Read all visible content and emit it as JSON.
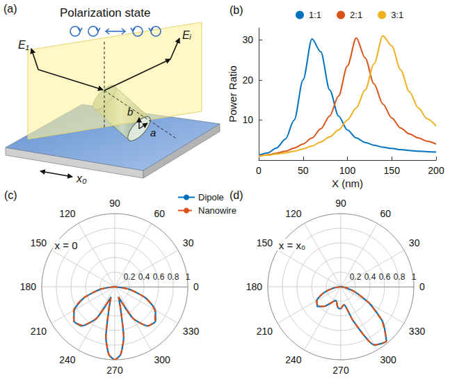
{
  "diagram": {
    "panel": "(a)",
    "title": "Polarization state",
    "labels": {
      "incident_field": "E₁",
      "reflected_field": "Eᵢ",
      "semi_axis_a": "a",
      "semi_axis_b": "b",
      "offset": "x₀"
    }
  },
  "chart_data": [
    {
      "panel": "(b)",
      "type": "line",
      "xlabel": "X (nm)",
      "ylabel": "Power Ratio",
      "x": [
        0,
        10,
        20,
        30,
        40,
        50,
        60,
        70,
        80,
        90,
        100,
        110,
        120,
        130,
        140,
        150,
        160,
        170,
        180,
        190,
        200
      ],
      "series": [
        {
          "name": "1:1",
          "color": "#0072BD",
          "values": [
            1.2,
            1.8,
            3.0,
            5.2,
            10,
            20,
            30.2,
            27,
            17.5,
            11,
            7.5,
            5.5,
            4.4,
            3.7,
            3.2,
            2.9,
            2.6,
            2.4,
            2.2,
            2.1,
            2.0
          ]
        },
        {
          "name": "2:1",
          "color": "#D95319",
          "values": [
            1.0,
            1.3,
            1.7,
            2.2,
            3.0,
            4.0,
            5.5,
            7.8,
            11,
            16,
            23.5,
            30.5,
            25.5,
            19,
            14,
            10.5,
            8,
            6.5,
            5.5,
            4.7,
            4.0
          ]
        },
        {
          "name": "3:1",
          "color": "#EDB120",
          "values": [
            1.0,
            1.2,
            1.5,
            1.8,
            2.2,
            2.8,
            3.5,
            4.5,
            5.8,
            7.5,
            10,
            13,
            17.5,
            24,
            31,
            28.5,
            22.5,
            17,
            13,
            10.3,
            8.5
          ]
        }
      ],
      "xlim": [
        0,
        200
      ],
      "xticks": [
        0,
        50,
        100,
        150,
        200
      ],
      "ylim": [
        0,
        33
      ],
      "yticks": [
        10,
        20,
        30
      ],
      "grid": false,
      "legend": "top"
    },
    {
      "panel": "(c)",
      "type": "polar",
      "annotation": "x = 0",
      "theta": [
        180,
        190,
        200,
        210,
        220,
        230,
        240,
        250,
        255,
        260,
        265,
        270,
        275,
        280,
        285,
        290,
        300,
        310,
        320,
        330,
        340,
        350,
        360
      ],
      "series": [
        {
          "name": "Dipole",
          "color": "#0072BD",
          "line_style": "solid",
          "values": [
            0,
            0.2,
            0.45,
            0.64,
            0.73,
            0.7,
            0.5,
            0.15,
            0.3,
            0.7,
            0.93,
            1,
            0.93,
            0.7,
            0.3,
            0.15,
            0.5,
            0.7,
            0.73,
            0.64,
            0.45,
            0.2,
            0
          ]
        },
        {
          "name": "Nanowire",
          "color": "#D95319",
          "line_style": "dashed",
          "values": [
            0,
            0.2,
            0.46,
            0.65,
            0.73,
            0.69,
            0.5,
            0.16,
            0.31,
            0.7,
            0.93,
            1,
            0.93,
            0.71,
            0.31,
            0.15,
            0.5,
            0.7,
            0.72,
            0.63,
            0.45,
            0.2,
            0
          ]
        }
      ],
      "rlim": [
        0,
        1
      ],
      "rticks": [
        0.2,
        0.4,
        0.6,
        0.8,
        1
      ],
      "thetaticks": [
        0,
        30,
        60,
        90,
        120,
        150,
        180,
        210,
        240,
        270,
        300,
        330
      ],
      "grid": true,
      "legend": "top right"
    },
    {
      "panel": "(d)",
      "type": "polar",
      "annotation": "x = x₀",
      "theta": [
        180,
        190,
        200,
        210,
        220,
        230,
        240,
        250,
        255,
        260,
        265,
        270,
        275,
        280,
        285,
        290,
        300,
        310,
        320,
        330,
        340,
        350,
        360
      ],
      "series": [
        {
          "name": "Dipole",
          "color": "#0072BD",
          "line_style": "solid",
          "values": [
            0,
            0.1,
            0.25,
            0.38,
            0.42,
            0.35,
            0.25,
            0.2,
            0.22,
            0.27,
            0.3,
            0.3,
            0.27,
            0.25,
            0.3,
            0.5,
            0.92,
            0.97,
            0.75,
            0.45,
            0.2,
            0.06,
            0
          ]
        },
        {
          "name": "Nanowire",
          "color": "#D95319",
          "line_style": "dashed",
          "values": [
            0,
            0.1,
            0.25,
            0.38,
            0.41,
            0.35,
            0.25,
            0.2,
            0.22,
            0.27,
            0.3,
            0.3,
            0.27,
            0.25,
            0.31,
            0.5,
            0.92,
            0.97,
            0.74,
            0.45,
            0.2,
            0.06,
            0
          ]
        }
      ],
      "rlim": [
        0,
        1
      ],
      "rticks": [
        0.2,
        0.4,
        0.6,
        0.8,
        1
      ],
      "thetaticks": [
        0,
        30,
        60,
        90,
        120,
        150,
        180,
        210,
        240,
        270,
        300,
        330
      ],
      "grid": true
    }
  ]
}
